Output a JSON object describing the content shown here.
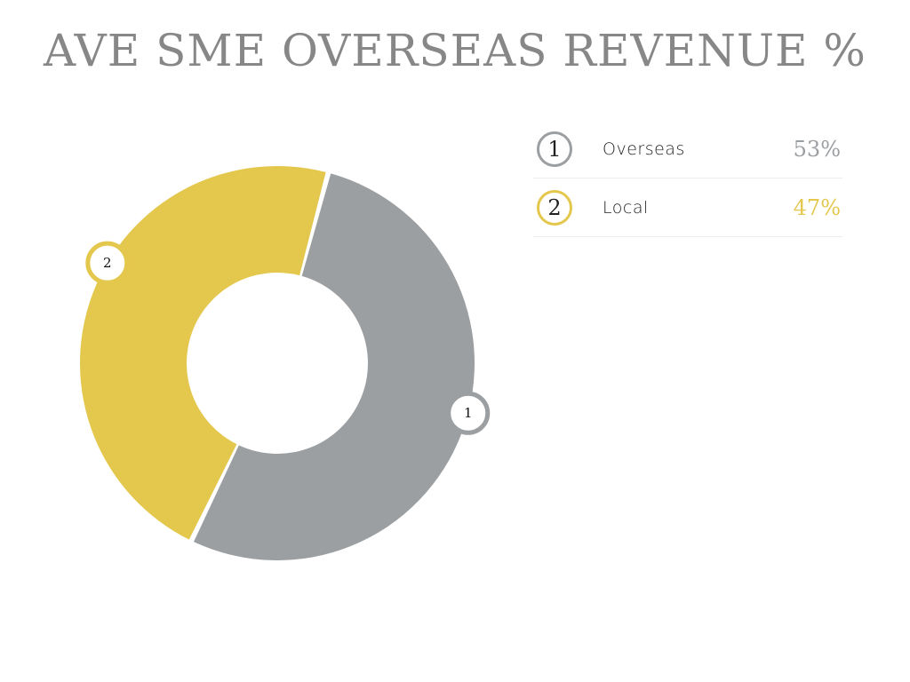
{
  "chart_data": {
    "type": "pie",
    "title": "AVE SME OVERSEAS REVENUE %",
    "unit": "%",
    "slices": [
      {
        "index": "1",
        "label": "Overseas",
        "value": 53,
        "display": "53%",
        "color": "#9c9fa2"
      },
      {
        "index": "2",
        "label": "Local",
        "value": 47,
        "display": "47%",
        "color": "#e4c74d"
      }
    ],
    "legend_position": "right"
  }
}
